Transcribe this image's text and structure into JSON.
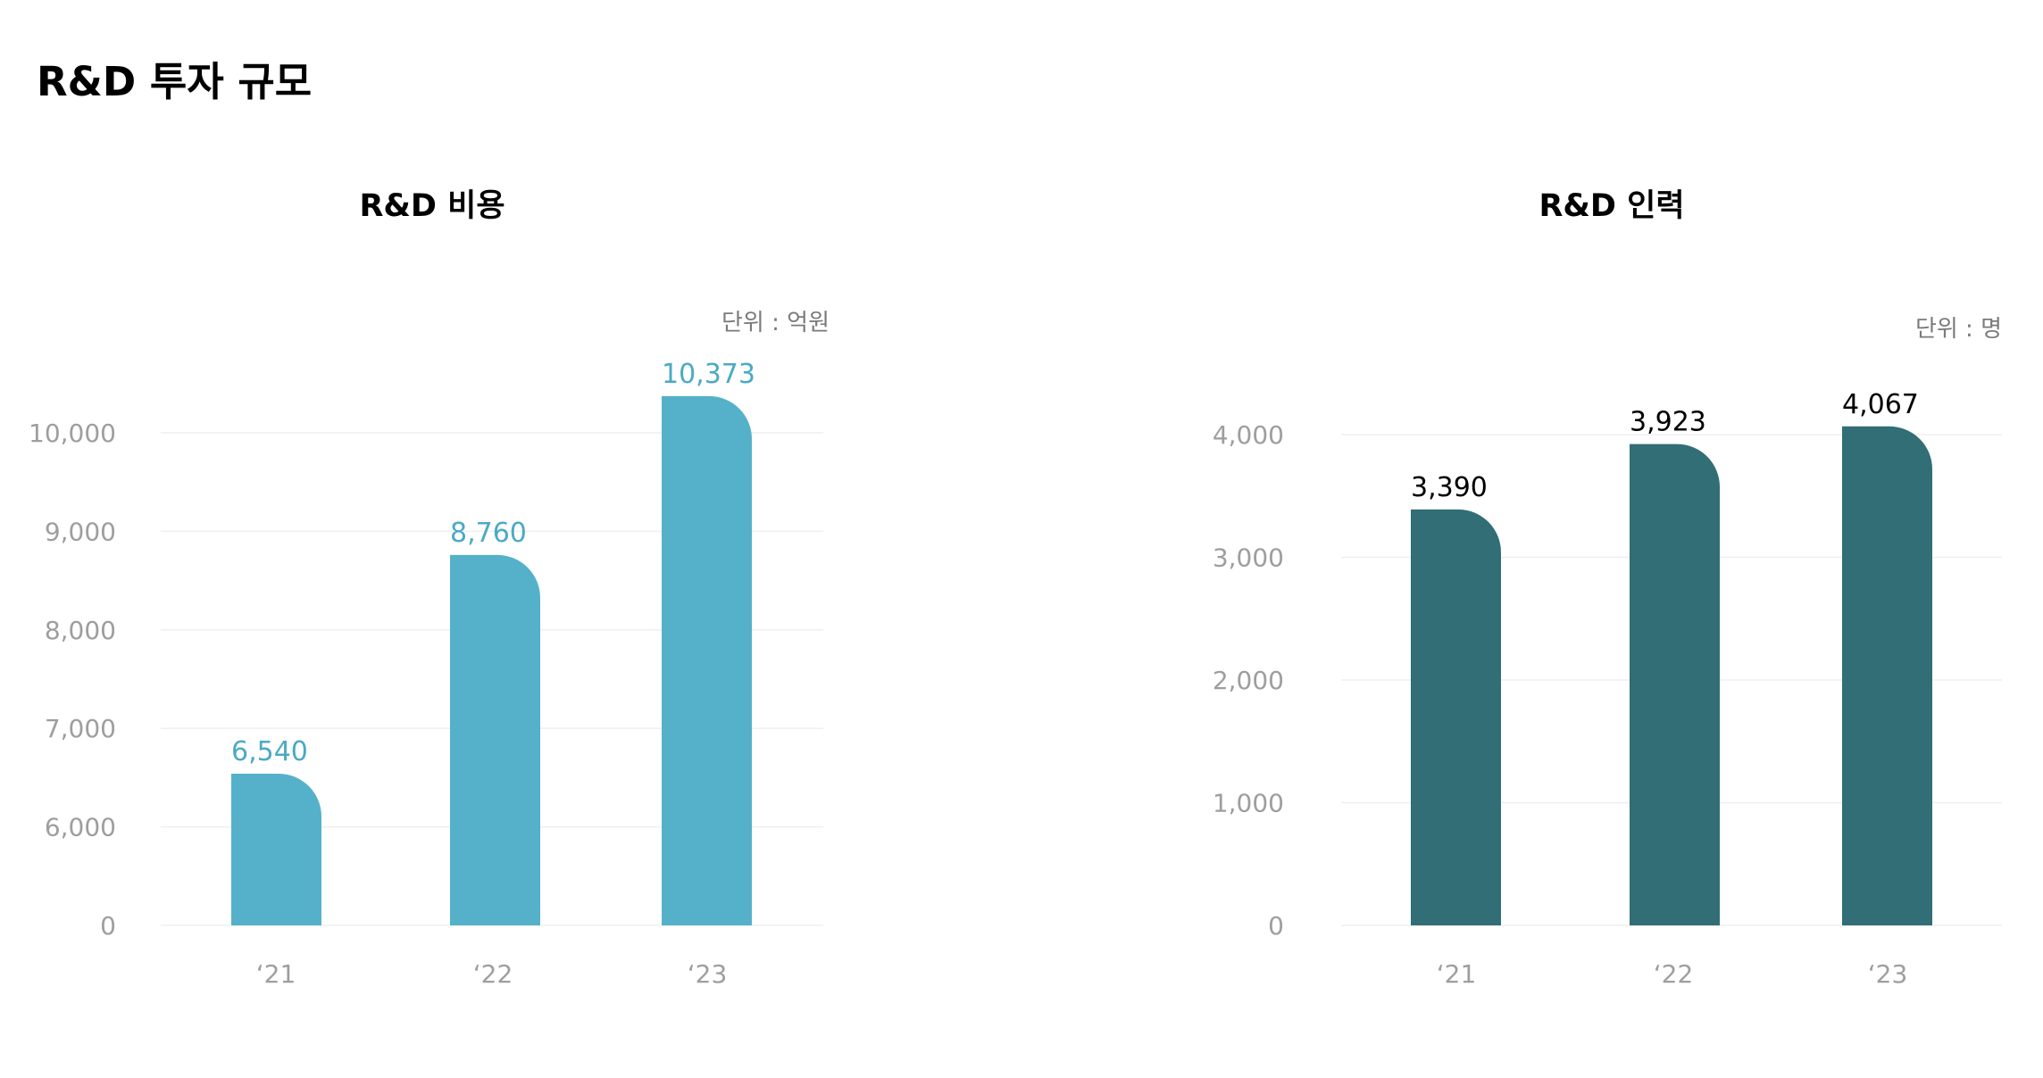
{
  "page": {
    "title": "R&D 투자 규모"
  },
  "colors": {
    "cost_bar": "#55b1ca",
    "cost_label": "#4aaac4",
    "staff_bar": "#316e75",
    "staff_label": "#000000",
    "axis_text": "#9e9e9e",
    "grid": "#efefef"
  },
  "chart_data": [
    {
      "type": "bar",
      "title": "R&D 비용",
      "unit_label": "단위 : 억원",
      "categories": [
        "‘21",
        "‘22",
        "‘23"
      ],
      "values": [
        6540,
        8760,
        10373
      ],
      "value_labels": [
        "6,540",
        "8,760",
        "10,373"
      ],
      "y_ticks": [
        0,
        6000,
        7000,
        8000,
        9000,
        10000
      ],
      "y_tick_labels": [
        "0",
        "6,000",
        "7,000",
        "8,000",
        "9,000",
        "10,000"
      ],
      "ylim": [
        5000,
        10000
      ],
      "y_axis_break": true,
      "grid": true
    },
    {
      "type": "bar",
      "title": "R&D 인력",
      "unit_label": "단위 : 명",
      "categories": [
        "‘21",
        "‘22",
        "‘23"
      ],
      "values": [
        3390,
        3923,
        4067
      ],
      "value_labels": [
        "3,390",
        "3,923",
        "4,067"
      ],
      "y_ticks": [
        0,
        1000,
        2000,
        3000,
        4000
      ],
      "y_tick_labels": [
        "0",
        "1,000",
        "2,000",
        "3,000",
        "4,000"
      ],
      "ylim": [
        0,
        4000
      ],
      "grid": true
    }
  ]
}
